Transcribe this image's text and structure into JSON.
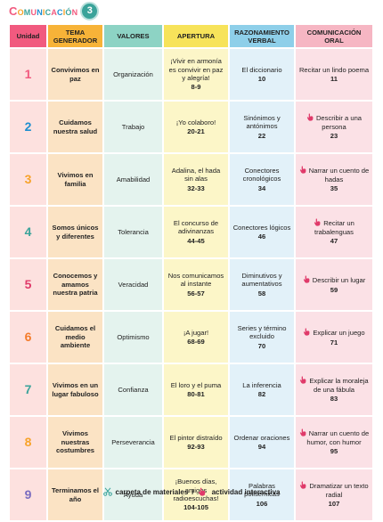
{
  "brand": {
    "letters": [
      {
        "char": "C",
        "color": "#f15a7f"
      },
      {
        "char": "o",
        "color": "#f7a32a"
      },
      {
        "char": "m",
        "color": "#3aa39a"
      },
      {
        "char": "u",
        "color": "#f15a7f"
      },
      {
        "char": "n",
        "color": "#1f8fcf"
      },
      {
        "char": "i",
        "color": "#f7a32a"
      },
      {
        "char": "c",
        "color": "#3aa39a"
      },
      {
        "char": "a",
        "color": "#f15a7f"
      },
      {
        "char": "c",
        "color": "#1f8fcf"
      },
      {
        "char": "i",
        "color": "#f7a32a"
      },
      {
        "char": "ó",
        "color": "#3aa39a"
      },
      {
        "char": "n",
        "color": "#f15a7f"
      }
    ],
    "grade": "3"
  },
  "headers": {
    "unidad": "Unidad",
    "tema": "TEMA GENERADOR",
    "valores": "VALORES",
    "apertura": "APERTURA",
    "razonamiento": "RAZONAMIENTO VERBAL",
    "comunicacion": "COMUNICACIÓN ORAL"
  },
  "unit_colors": [
    "#f15a7f",
    "#1f8fcf",
    "#f7a32a",
    "#3aa39a",
    "#e03a6a",
    "#f47b2a",
    "#3aa39a",
    "#f7a32a",
    "#7a6cc0"
  ],
  "rows": [
    {
      "unidad": "1",
      "tema": "Convivimos en paz",
      "valores": "Organización",
      "apertura": "¡Vivir en armonía es convivir en paz y alegría!",
      "apertura_pg": "8-9",
      "razon": "El diccionario",
      "razon_pg": "10",
      "comun": "Recitar un lindo poema",
      "comun_pg": "11",
      "comun_icon": false
    },
    {
      "unidad": "2",
      "tema": "Cuidamos nuestra salud",
      "valores": "Trabajo",
      "apertura": "¡Yo colaboro!",
      "apertura_pg": "20-21",
      "razon": "Sinónimos y antónimos",
      "razon_pg": "22",
      "comun": "Describir a una persona",
      "comun_pg": "23",
      "comun_icon": true
    },
    {
      "unidad": "3",
      "tema": "Vivimos en familia",
      "valores": "Amabilidad",
      "apertura": "Adalina, el hada sin alas",
      "apertura_pg": "32-33",
      "razon": "Conectores cronológicos",
      "razon_pg": "34",
      "comun": "Narrar un cuento de hadas",
      "comun_pg": "35",
      "comun_icon": true
    },
    {
      "unidad": "4",
      "tema": "Somos únicos y diferentes",
      "valores": "Tolerancia",
      "apertura": "El concurso de adivinanzas",
      "apertura_pg": "44-45",
      "razon": "Conectores lógicos",
      "razon_pg": "46",
      "comun": "Recitar un trabalenguas",
      "comun_pg": "47",
      "comun_icon": true
    },
    {
      "unidad": "5",
      "tema": "Conocemos y amamos nuestra patria",
      "valores": "Veracidad",
      "apertura": "Nos comunicamos al instante",
      "apertura_pg": "56-57",
      "razon": "Diminutivos y aumentativos",
      "razon_pg": "58",
      "comun": "Describir un lugar",
      "comun_pg": "59",
      "comun_icon": true
    },
    {
      "unidad": "6",
      "tema": "Cuidamos el medio ambiente",
      "valores": "Optimismo",
      "apertura": "¡A jugar!",
      "apertura_pg": "68-69",
      "razon": "Series y término excluido",
      "razon_pg": "70",
      "comun": "Explicar un juego",
      "comun_pg": "71",
      "comun_icon": true
    },
    {
      "unidad": "7",
      "tema": "Vivimos en un lugar fabuloso",
      "valores": "Confianza",
      "apertura": "El loro y el puma",
      "apertura_pg": "80-81",
      "razon": "La inferencia",
      "razon_pg": "82",
      "comun": "Explicar la moraleja de una fábula",
      "comun_pg": "83",
      "comun_icon": true
    },
    {
      "unidad": "8",
      "tema": "Vivimos nuestras costumbres",
      "valores": "Perseverancia",
      "apertura": "El pintor distraído",
      "apertura_pg": "92-93",
      "razon": "Ordenar oraciones",
      "razon_pg": "94",
      "comun": "Narrar un cuento de humor, con humor",
      "comun_pg": "95",
      "comun_icon": true
    },
    {
      "unidad": "9",
      "tema": "Terminamos el año",
      "valores": "Ayuda",
      "apertura": "¡Buenos días, amigos radioescuchas!",
      "apertura_pg": "104-105",
      "razon": "Palabras polisémicas",
      "razon_pg": "106",
      "comun": "Dramatizar un texto radial",
      "comun_pg": "107",
      "comun_icon": true
    }
  ],
  "legend": {
    "materials": "carpeta de materiales",
    "separator": "/",
    "interactive": "actividad interactiva"
  }
}
